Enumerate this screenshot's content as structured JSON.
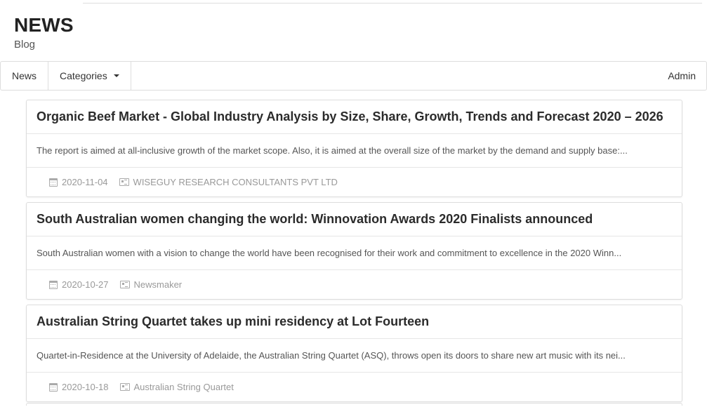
{
  "header": {
    "title": "NEWS",
    "subtitle": "Blog"
  },
  "nav": {
    "news_label": "News",
    "categories_label": "Categories",
    "admin_label": "Admin"
  },
  "icons": {
    "date": "calendar-icon",
    "source": "newspaper-icon",
    "dropdown": "caret-down-icon"
  },
  "posts": [
    {
      "title": "Organic Beef Market - Global Industry Analysis by Size, Share, Growth, Trends and Forecast 2020 – 2026",
      "excerpt": "The report is aimed at all-inclusive growth of the market scope. Also, it is aimed at the overall size of the market by the demand and supply base:...",
      "date": "2020-11-04",
      "source": "WISEGUY RESEARCH CONSULTANTS PVT LTD"
    },
    {
      "title": "South Australian women changing the world: Winnovation Awards 2020 Finalists announced",
      "excerpt": "South Australian women with a vision to change the world have been recognised for their work and commitment to excellence in the 2020 Winn...",
      "date": "2020-10-27",
      "source": "Newsmaker"
    },
    {
      "title": "Australian String Quartet takes up mini residency at Lot Fourteen",
      "excerpt": "Quartet-in-Residence at the University of Adelaide, the Australian String Quartet (ASQ), throws open its doors to share new art music with its nei...",
      "date": "2020-10-18",
      "source": "Australian String Quartet"
    }
  ]
}
